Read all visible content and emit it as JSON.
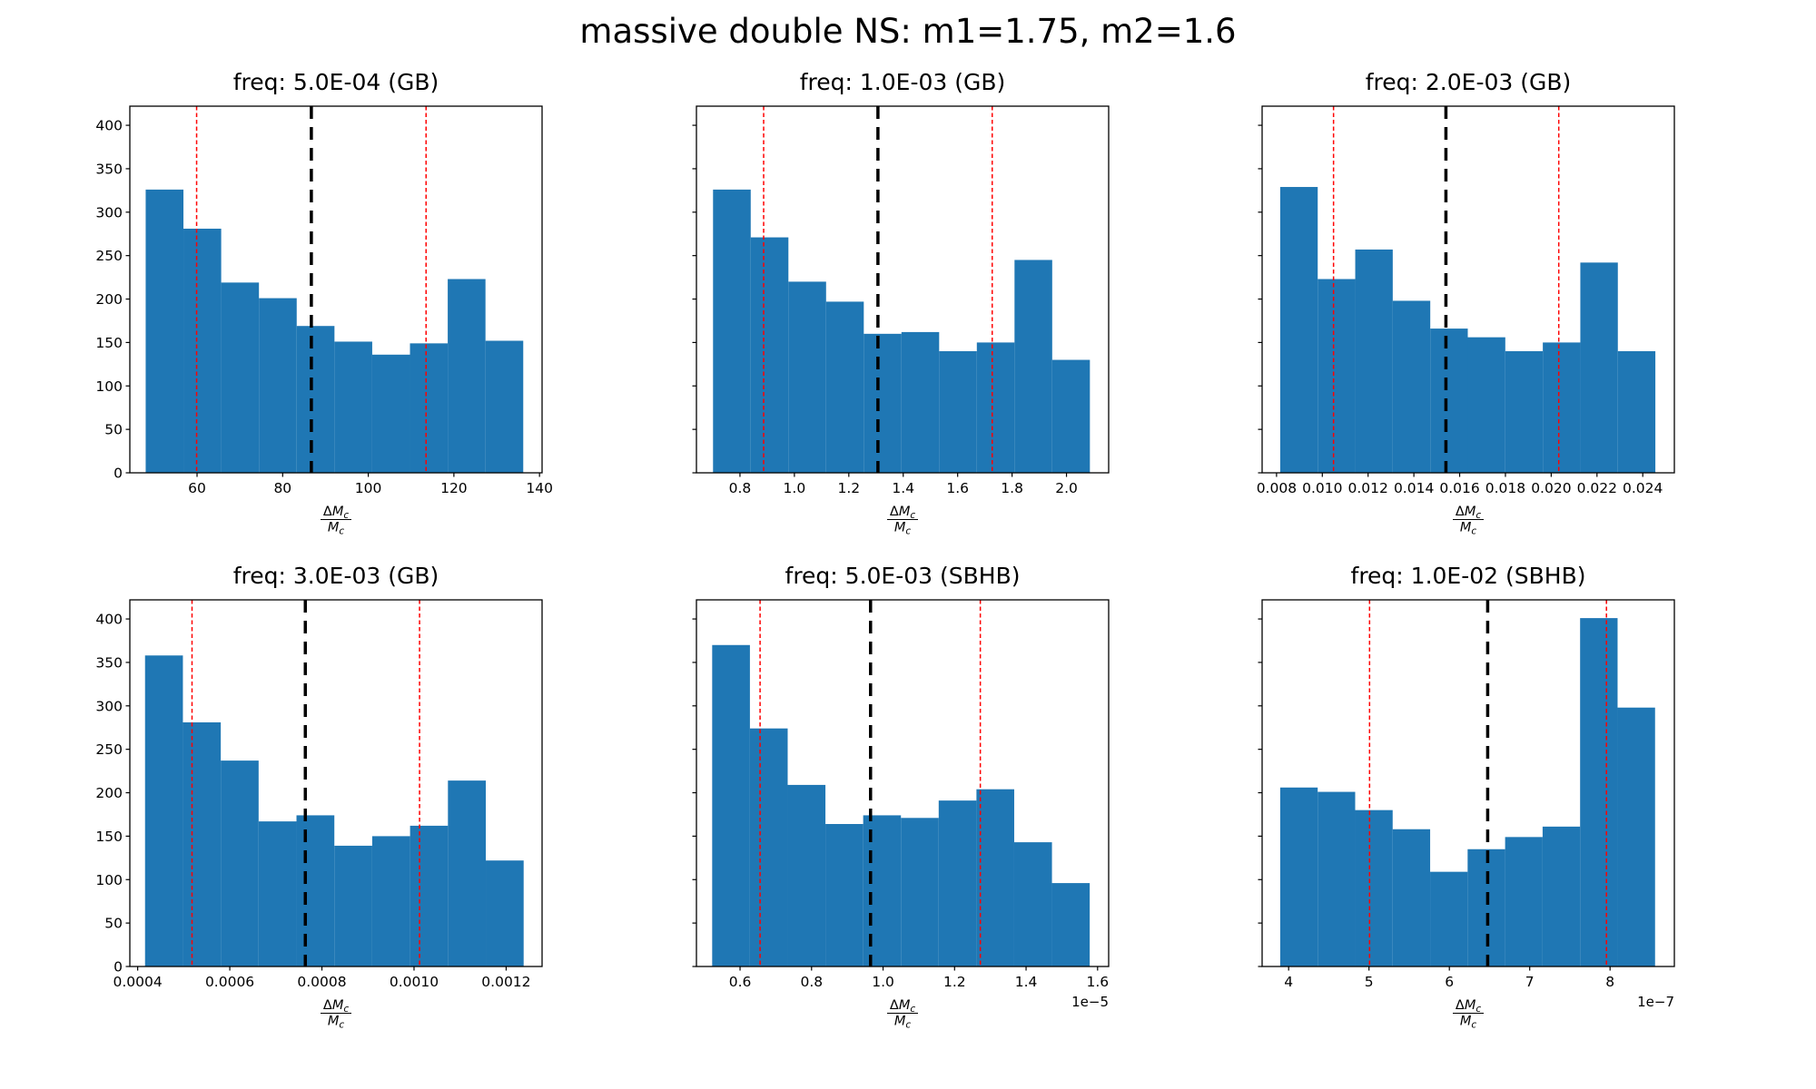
{
  "figure": {
    "suptitle": "massive double NS: m1=1.75, m2=1.6",
    "background": "#ffffff",
    "bar_color": "#1f77b4",
    "red_line_color": "#ff0000",
    "black_line_color": "#000000"
  },
  "chart_data": [
    {
      "type": "bar",
      "subtype": "histogram",
      "title": "freq: 5.0E-04 (GB)",
      "xlabel": {
        "numerator_prefix": "Δ",
        "numerator_base": "M",
        "numerator_sub": "c",
        "denominator_base": "M",
        "denominator_sub": "c"
      },
      "bins_start": 48.0,
      "bin_width": 8.82,
      "counts": [
        326,
        281,
        219,
        201,
        169,
        151,
        136,
        149,
        223,
        152
      ],
      "xlim": [
        44.3,
        140.6
      ],
      "ylim": [
        0,
        422
      ],
      "x_tick_values": [
        60,
        80,
        100,
        120,
        140
      ],
      "x_tick_labels": [
        "60",
        "80",
        "100",
        "120",
        "140"
      ],
      "y_tick_values": [
        0,
        50,
        100,
        150,
        200,
        250,
        300,
        350,
        400
      ],
      "show_y_tick_labels": true,
      "x_offset_text": "",
      "vlines_red": [
        59.9,
        113.5
      ],
      "vline_black": 86.7
    },
    {
      "type": "bar",
      "subtype": "histogram",
      "title": "freq: 1.0E-03 (GB)",
      "xlabel": {
        "numerator_prefix": "Δ",
        "numerator_base": "M",
        "numerator_sub": "c",
        "denominator_base": "M",
        "denominator_sub": "c"
      },
      "bins_start": 0.701,
      "bin_width": 0.1385,
      "counts": [
        326,
        271,
        220,
        197,
        160,
        162,
        140,
        150,
        245,
        130
      ],
      "xlim": [
        0.64,
        2.155
      ],
      "ylim": [
        0,
        422
      ],
      "x_tick_values": [
        0.8,
        1.0,
        1.2,
        1.4,
        1.6,
        1.8,
        2.0
      ],
      "x_tick_labels": [
        "0.8",
        "1.0",
        "1.2",
        "1.4",
        "1.6",
        "1.8",
        "2.0"
      ],
      "y_tick_values": [
        0,
        50,
        100,
        150,
        200,
        250,
        300,
        350,
        400
      ],
      "show_y_tick_labels": false,
      "x_offset_text": "",
      "vlines_red": [
        0.887,
        1.727
      ],
      "vline_black": 1.307
    },
    {
      "type": "bar",
      "subtype": "histogram",
      "title": "freq: 2.0E-03 (GB)",
      "xlabel": {
        "numerator_prefix": "Δ",
        "numerator_base": "M",
        "numerator_sub": "c",
        "denominator_base": "M",
        "denominator_sub": "c"
      },
      "bins_start": 0.00816,
      "bin_width": 0.001639,
      "counts": [
        329,
        223,
        257,
        198,
        166,
        156,
        140,
        150,
        242,
        140
      ],
      "xlim": [
        0.00737,
        0.02538
      ],
      "ylim": [
        0,
        422
      ],
      "x_tick_values": [
        0.008,
        0.01,
        0.012,
        0.014,
        0.016,
        0.018,
        0.02,
        0.022,
        0.024
      ],
      "x_tick_labels": [
        "0.008",
        "0.010",
        "0.012",
        "0.014",
        "0.016",
        "0.018",
        "0.020",
        "0.022",
        "0.024"
      ],
      "y_tick_values": [
        0,
        50,
        100,
        150,
        200,
        250,
        300,
        350,
        400
      ],
      "show_y_tick_labels": false,
      "x_offset_text": "",
      "vlines_red": [
        0.01049,
        0.02033
      ],
      "vline_black": 0.0154
    },
    {
      "type": "bar",
      "subtype": "histogram",
      "title": "freq: 3.0E-03 (GB)",
      "xlabel": {
        "numerator_prefix": "Δ",
        "numerator_base": "M",
        "numerator_sub": "c",
        "denominator_base": "M",
        "denominator_sub": "c"
      },
      "bins_start": 0.000416,
      "bin_width": 8.22e-05,
      "counts": [
        358,
        281,
        237,
        167,
        174,
        139,
        150,
        162,
        214,
        122
      ],
      "xlim": [
        0.000383,
        0.001278
      ],
      "ylim": [
        0,
        422
      ],
      "x_tick_values": [
        0.0004,
        0.0006,
        0.0008,
        0.001,
        0.0012
      ],
      "x_tick_labels": [
        "0.0004",
        "0.0006",
        "0.0008",
        "0.0010",
        "0.0012"
      ],
      "y_tick_values": [
        0,
        50,
        100,
        150,
        200,
        250,
        300,
        350,
        400
      ],
      "show_y_tick_labels": true,
      "x_offset_text": "",
      "vlines_red": [
        0.000518,
        0.001012
      ],
      "vline_black": 0.000764
    },
    {
      "type": "bar",
      "subtype": "histogram",
      "title": "freq: 5.0E-03 (SBHB)",
      "xlabel": {
        "numerator_prefix": "Δ",
        "numerator_base": "M",
        "numerator_sub": "c",
        "denominator_base": "M",
        "denominator_sub": "c"
      },
      "bins_start": 0.522,
      "bin_width": 0.1056,
      "counts": [
        370,
        274,
        209,
        164,
        174,
        171,
        191,
        204,
        143,
        96
      ],
      "xlim": [
        0.478,
        1.631
      ],
      "ylim": [
        0,
        422
      ],
      "x_tick_values": [
        0.6,
        0.8,
        1.0,
        1.2,
        1.4,
        1.6
      ],
      "x_tick_labels": [
        "0.6",
        "0.8",
        "1.0",
        "1.2",
        "1.4",
        "1.6"
      ],
      "y_tick_values": [
        0,
        50,
        100,
        150,
        200,
        250,
        300,
        350,
        400
      ],
      "show_y_tick_labels": false,
      "x_offset_text": "1e−5",
      "vlines_red": [
        0.656,
        1.272
      ],
      "vline_black": 0.965
    },
    {
      "type": "bar",
      "subtype": "histogram",
      "title": "freq: 1.0E-02 (SBHB)",
      "xlabel": {
        "numerator_prefix": "Δ",
        "numerator_base": "M",
        "numerator_sub": "c",
        "denominator_base": "M",
        "denominator_sub": "c"
      },
      "bins_start": 3.895,
      "bin_width": 0.4665,
      "counts": [
        206,
        201,
        180,
        158,
        109,
        135,
        149,
        161,
        401,
        298
      ],
      "xlim": [
        3.67,
        8.8
      ],
      "ylim": [
        0,
        422
      ],
      "x_tick_values": [
        4,
        5,
        6,
        7,
        8
      ],
      "x_tick_labels": [
        "4",
        "5",
        "6",
        "7",
        "8"
      ],
      "y_tick_values": [
        0,
        50,
        100,
        150,
        200,
        250,
        300,
        350,
        400
      ],
      "show_y_tick_labels": false,
      "x_offset_text": "1e−7",
      "vlines_red": [
        5.007,
        7.955
      ],
      "vline_black": 6.477
    }
  ]
}
